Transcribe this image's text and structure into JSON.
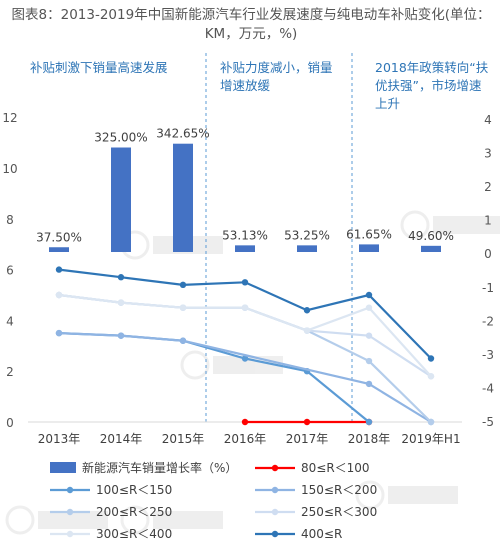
{
  "title": "图表8：2013-2019年中国新能源汽车行业发展速度与纯电动车补贴变化(单位：KM，万元，%)",
  "colors": {
    "accent": "#2E75B6",
    "bar": "#4472C4",
    "red_series": "#FF0000",
    "phase_divider": "#5B9BD5",
    "axis_text": "#555555"
  },
  "chart_data": {
    "type": "bar+line",
    "categories": [
      "2013年",
      "2014年",
      "2015年",
      "2016年",
      "2017年",
      "2018年",
      "2019年H1"
    ],
    "bar_series": {
      "name": "新能源汽车销量增长率（%）",
      "labels": [
        "37.50%",
        "325.00%",
        "342.65%",
        "53.13%",
        "53.25%",
        "61.65%",
        "49.60%"
      ],
      "heights": [
        0.5,
        11,
        11.4,
        0.7,
        0.7,
        0.8,
        0.65
      ]
    },
    "left_axis": {
      "ticks": [
        "0",
        "2",
        "4",
        "6",
        "8",
        "10",
        "12"
      ],
      "range": [
        0,
        12
      ]
    },
    "right_axis": {
      "ticks": [
        "-5",
        "-4",
        "-3",
        "-2",
        "-1",
        "0",
        "1",
        "2",
        "3",
        "4"
      ],
      "range": [
        -5,
        4
      ]
    },
    "series": [
      {
        "name": "80≤R＜100",
        "color": "#FF0000",
        "values": [
          null,
          null,
          null,
          0,
          0,
          0,
          null
        ]
      },
      {
        "name": "100≤R＜150",
        "color": "#5B9BD5",
        "values": [
          3.5,
          3.4,
          3.2,
          2.5,
          2.0,
          0,
          null
        ]
      },
      {
        "name": "150≤R＜200",
        "color": "#8FB4E3",
        "values": [
          3.5,
          3.4,
          3.2,
          null,
          null,
          1.5,
          0
        ]
      },
      {
        "name": "200≤R＜250",
        "color": "#B4CDEB",
        "values": [
          5.0,
          4.7,
          4.5,
          4.5,
          3.6,
          2.4,
          0
        ]
      },
      {
        "name": "250≤R＜300",
        "color": "#CFDDF1",
        "values": [
          5.0,
          4.7,
          4.5,
          4.5,
          3.6,
          3.4,
          1.8
        ]
      },
      {
        "name": "300≤R＜400",
        "color": "#DCE6F2",
        "values": [
          5.0,
          4.7,
          4.5,
          4.5,
          3.6,
          4.5,
          1.8
        ]
      },
      {
        "name": "400≤R",
        "color": "#2E75B6",
        "values": [
          6.0,
          5.7,
          5.4,
          5.5,
          4.4,
          5.0,
          2.5
        ]
      }
    ],
    "phases": [
      {
        "label": [
          "补贴刺激下销量高速发展"
        ]
      },
      {
        "label": [
          "补贴力度减小，销量",
          "增速放缓"
        ]
      },
      {
        "label": [
          "2018年政策转向“扶",
          "优扶强”，市场增速",
          "上升"
        ]
      }
    ]
  },
  "legend_items": [
    {
      "name": "新能源汽车销量增长率（%）",
      "kind": "bar",
      "color": "#4472C4"
    },
    {
      "name": "80≤R＜100",
      "kind": "line",
      "color": "#FF0000"
    },
    {
      "name": "100≤R＜150",
      "kind": "line",
      "color": "#5B9BD5"
    },
    {
      "name": "150≤R＜200",
      "kind": "line",
      "color": "#8FB4E3"
    },
    {
      "name": "200≤R＜250",
      "kind": "line",
      "color": "#B4CDEB"
    },
    {
      "name": "250≤R＜300",
      "kind": "line",
      "color": "#CFDDF1"
    },
    {
      "name": "300≤R＜400",
      "kind": "line",
      "color": "#DCE6F2"
    },
    {
      "name": "400≤R",
      "kind": "line",
      "color": "#2E75B6"
    }
  ]
}
